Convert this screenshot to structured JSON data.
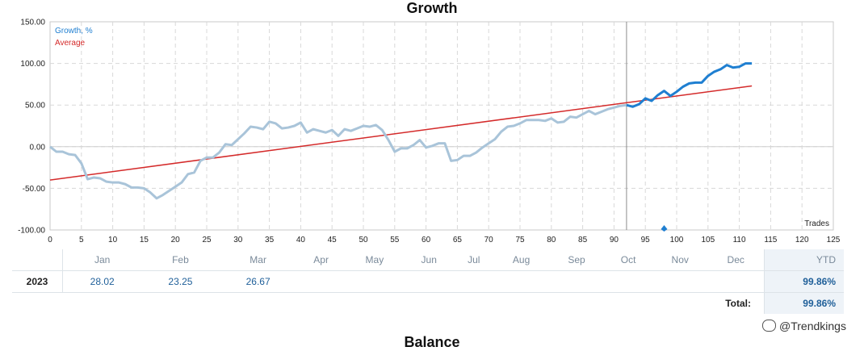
{
  "page": {
    "title": "Growth",
    "bottom_title": "Balance",
    "watermark": "@Trendkings"
  },
  "chart_data": {
    "type": "line",
    "xlabel": "Trades",
    "xlim": [
      0,
      125
    ],
    "ylim": [
      -100,
      150
    ],
    "x_ticks": [
      0,
      5,
      10,
      15,
      20,
      25,
      30,
      35,
      40,
      45,
      50,
      55,
      60,
      65,
      70,
      75,
      80,
      85,
      90,
      95,
      100,
      105,
      110,
      115,
      120,
      125
    ],
    "y_ticks": [
      150,
      100,
      50,
      0,
      -50,
      -100
    ],
    "y_tick_labels": [
      "150.00",
      "100.00",
      "50.00",
      "0.00",
      "-50.00",
      "-100.00"
    ],
    "grid": true,
    "legend_position": "top-left",
    "month_labels": [
      "Jan",
      "Feb",
      "Mar",
      "Apr",
      "May",
      "Jun",
      "Jul",
      "Aug",
      "Sep",
      "Oct",
      "Nov",
      "Dec"
    ],
    "month_positions": [
      8,
      17.5,
      27,
      36.5,
      45.8,
      55.3,
      64.8,
      73.8,
      83.2,
      92.5,
      101.8,
      111.2
    ],
    "divider_x": 92,
    "marker_x": 98,
    "series": [
      {
        "name": "Growth, %",
        "color": "#1f7fd1",
        "history_color": "#a9c4d9",
        "highlight_from": 92,
        "x": [
          0,
          1,
          2,
          3,
          4,
          5,
          6,
          7,
          8,
          9,
          10,
          11,
          12,
          13,
          14,
          15,
          16,
          17,
          18,
          19,
          20,
          21,
          22,
          23,
          24,
          25,
          26,
          27,
          28,
          29,
          30,
          31,
          32,
          33,
          34,
          35,
          36,
          37,
          38,
          39,
          40,
          41,
          42,
          43,
          44,
          45,
          46,
          47,
          48,
          49,
          50,
          51,
          52,
          53,
          54,
          55,
          56,
          57,
          58,
          59,
          60,
          61,
          62,
          63,
          64,
          65,
          66,
          67,
          68,
          69,
          70,
          71,
          72,
          73,
          74,
          75,
          76,
          77,
          78,
          79,
          80,
          81,
          82,
          83,
          84,
          85,
          86,
          87,
          88,
          89,
          90,
          91,
          92,
          93,
          94,
          95,
          96,
          97,
          98,
          99,
          100,
          101,
          102,
          103,
          104,
          105,
          106,
          107,
          108,
          109,
          110,
          111,
          112
        ],
        "y": [
          0,
          -6,
          -6,
          -9,
          -10,
          -20,
          -39,
          -37,
          -38,
          -42,
          -43,
          -43,
          -45,
          -49,
          -49,
          -50,
          -55,
          -62,
          -58,
          -53,
          -48,
          -43,
          -33,
          -31,
          -17,
          -13,
          -13,
          -7,
          3,
          2,
          9,
          16,
          24,
          23,
          21,
          30,
          28,
          22,
          23,
          25,
          29,
          17,
          21,
          19,
          17,
          20,
          13,
          21,
          19,
          22,
          25,
          24,
          26,
          20,
          8,
          -6,
          -2,
          -2,
          2,
          8,
          -1,
          1,
          4,
          4,
          -17,
          -16,
          -11,
          -11,
          -7,
          -1,
          4,
          9,
          18,
          24,
          25,
          28,
          32,
          32,
          32,
          31,
          34,
          29,
          30,
          36,
          35,
          39,
          43,
          39,
          42,
          45,
          47,
          49,
          50,
          48,
          51,
          58,
          55,
          62,
          67,
          61,
          66,
          72,
          76,
          77,
          77,
          85,
          90,
          93,
          98,
          95,
          96,
          100,
          100
        ]
      },
      {
        "name": "Average",
        "color": "#d42a2a",
        "x": [
          0,
          112
        ],
        "y": [
          -40,
          73
        ]
      }
    ]
  },
  "monthly": {
    "headers": [
      "Jan",
      "Feb",
      "Mar",
      "Apr",
      "May",
      "Jun",
      "Jul",
      "Aug",
      "Sep",
      "Oct",
      "Nov",
      "Dec"
    ],
    "ytd_label": "YTD",
    "rows": [
      {
        "year": "2023",
        "values": [
          "28.02",
          "23.25",
          "26.67",
          "",
          "",
          "",
          "",
          "",
          "",
          "",
          "",
          ""
        ],
        "ytd": "99.86%"
      }
    ],
    "total_label": "Total:",
    "total_value": "99.86%"
  }
}
